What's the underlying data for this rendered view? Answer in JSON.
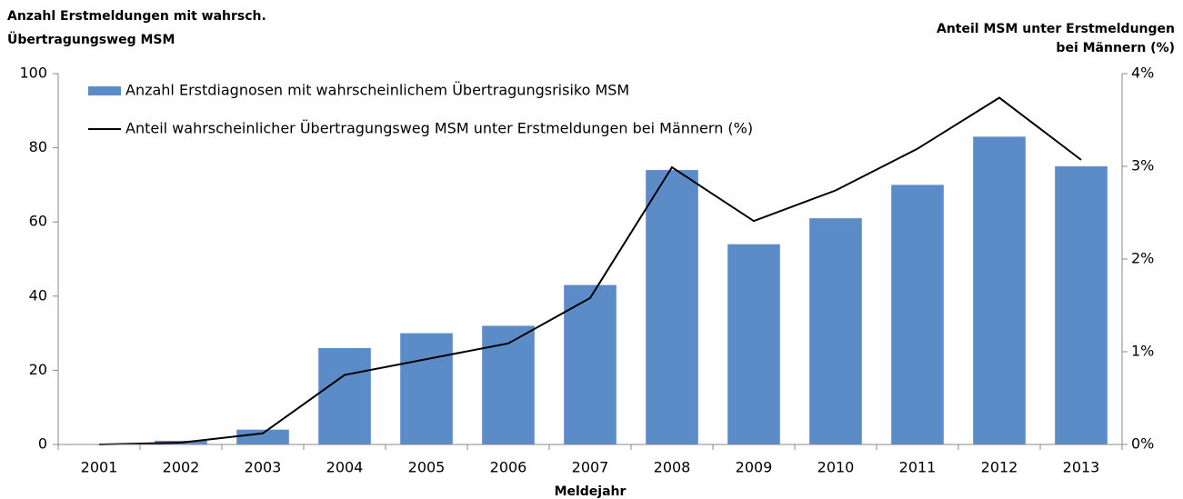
{
  "chart_data": {
    "type": "bar_line",
    "y_label": [
      "Anzahl Erstmeldungen mit wahrsch.",
      "Übertragungsweg MSM"
    ],
    "y2_label": [
      "Anteil MSM unter Erstmeldungen",
      "bei Männern (%)"
    ],
    "x_label": "Meldejahr",
    "categories": [
      "2001",
      "2002",
      "2003",
      "2004",
      "2005",
      "2006",
      "2007",
      "2008",
      "2009",
      "2010",
      "2011",
      "2012",
      "2013"
    ],
    "series": [
      {
        "name": "Anzahl Erstdiagnosen mit wahrscheinlichem Übertragungsrisiko MSM",
        "type": "bar",
        "color": "#5b8cc8",
        "values": [
          0,
          1,
          4,
          26,
          30,
          32,
          43,
          74,
          54,
          61,
          70,
          83,
          75
        ]
      },
      {
        "name": "Anteil wahrscheinlicher Übertragungsweg MSM unter Erstmeldungen bei Männern (%)",
        "type": "line",
        "color": "#000000",
        "axis": "y2",
        "values": [
          0,
          0.02,
          0.12,
          0.75,
          0.92,
          1.09,
          1.58,
          2.99,
          2.41,
          2.74,
          3.19,
          3.74,
          3.07
        ]
      }
    ],
    "ylim": [
      0,
      100
    ],
    "yticks": [
      0,
      20,
      40,
      60,
      80,
      100
    ],
    "y2lim": [
      0,
      4
    ],
    "y2ticks": [
      {
        "value": 0,
        "label": "0%"
      },
      {
        "value": 1,
        "label": "1%"
      },
      {
        "value": 2,
        "label": "2%"
      },
      {
        "value": 3,
        "label": "3%"
      },
      {
        "value": 4,
        "label": "4%"
      }
    ],
    "legend": "top-left"
  }
}
